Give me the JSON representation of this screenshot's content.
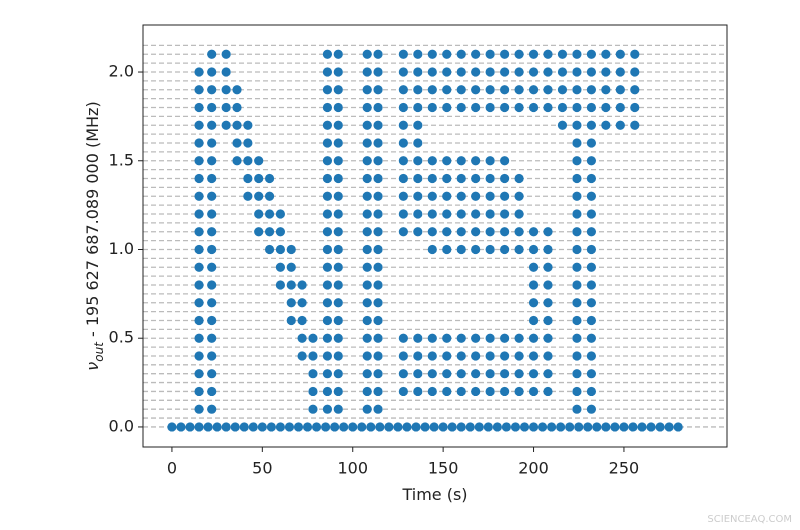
{
  "chart_data": {
    "type": "scatter",
    "xlabel": "Time (s)",
    "ylabel": "ν",
    "ylabel_sub": "out",
    "ylabel_rest": " - 195 627 687.089 000 (MHz)",
    "watermark": "SCIENCEAQ.COM",
    "color": "#1f77b4",
    "xlim": [
      -16,
      307
    ],
    "ylim": [
      -0.113,
      2.265
    ],
    "xticks": [
      0,
      50,
      100,
      150,
      200,
      250
    ],
    "yticks": [
      {
        "value": 0,
        "label": "0.0"
      },
      0.5,
      {
        "value": 1,
        "label": "1.0"
      },
      1.5,
      {
        "value": 2,
        "label": "2.0"
      }
    ],
    "hlines": [
      0,
      0.05,
      0.1,
      0.15,
      0.2,
      0.25,
      0.3,
      0.35,
      0.4,
      0.45,
      0.5,
      0.55,
      0.6,
      0.65,
      0.7,
      0.75,
      0.8,
      0.85,
      0.9,
      0.95,
      1.0,
      1.05,
      1.1,
      1.15,
      1.2,
      1.25,
      1.3,
      1.35,
      1.4,
      1.45,
      1.5,
      1.55,
      1.6,
      1.65,
      1.7,
      1.75,
      1.8,
      1.85,
      1.9,
      1.95,
      2.0,
      2.05,
      2.1,
      2.15
    ],
    "points": [
      [
        15,
        0.1
      ],
      [
        15,
        0.2
      ],
      [
        15,
        0.3
      ],
      [
        15,
        0.4
      ],
      [
        15,
        0.5
      ],
      [
        15,
        0.6
      ],
      [
        15,
        0.7
      ],
      [
        15,
        0.8
      ],
      [
        15,
        0.9
      ],
      [
        15,
        1.0
      ],
      [
        15,
        1.1
      ],
      [
        15,
        1.2
      ],
      [
        15,
        1.3
      ],
      [
        15,
        1.4
      ],
      [
        15,
        1.5
      ],
      [
        15,
        1.6
      ],
      [
        15,
        1.7
      ],
      [
        15,
        1.8
      ],
      [
        15,
        1.9
      ],
      [
        15,
        2.0
      ],
      [
        22,
        0.1
      ],
      [
        22,
        0.2
      ],
      [
        22,
        0.3
      ],
      [
        22,
        0.4
      ],
      [
        22,
        0.5
      ],
      [
        22,
        0.6
      ],
      [
        22,
        0.7
      ],
      [
        22,
        0.8
      ],
      [
        22,
        0.9
      ],
      [
        22,
        1.0
      ],
      [
        22,
        1.1
      ],
      [
        22,
        1.2
      ],
      [
        22,
        1.3
      ],
      [
        22,
        1.4
      ],
      [
        22,
        1.5
      ],
      [
        22,
        1.6
      ],
      [
        22,
        1.7
      ],
      [
        22,
        1.8
      ],
      [
        22,
        1.9
      ],
      [
        22,
        2.0
      ],
      [
        22,
        2.1
      ],
      [
        30,
        1.7
      ],
      [
        30,
        1.8
      ],
      [
        30,
        1.9
      ],
      [
        30,
        2.0
      ],
      [
        30,
        2.1
      ],
      [
        36,
        1.5
      ],
      [
        36,
        1.6
      ],
      [
        36,
        1.7
      ],
      [
        36,
        1.8
      ],
      [
        36,
        1.9
      ],
      [
        42,
        1.3
      ],
      [
        42,
        1.4
      ],
      [
        42,
        1.5
      ],
      [
        42,
        1.6
      ],
      [
        42,
        1.7
      ],
      [
        48,
        1.1
      ],
      [
        48,
        1.2
      ],
      [
        48,
        1.3
      ],
      [
        48,
        1.4
      ],
      [
        48,
        1.5
      ],
      [
        54,
        1.0
      ],
      [
        54,
        1.1
      ],
      [
        54,
        1.2
      ],
      [
        54,
        1.3
      ],
      [
        54,
        1.4
      ],
      [
        60,
        0.8
      ],
      [
        60,
        0.9
      ],
      [
        60,
        1.0
      ],
      [
        60,
        1.1
      ],
      [
        60,
        1.2
      ],
      [
        66,
        0.6
      ],
      [
        66,
        0.7
      ],
      [
        66,
        0.8
      ],
      [
        66,
        0.9
      ],
      [
        66,
        1.0
      ],
      [
        72,
        0.4
      ],
      [
        72,
        0.5
      ],
      [
        72,
        0.6
      ],
      [
        72,
        0.7
      ],
      [
        72,
        0.8
      ],
      [
        78,
        0.1
      ],
      [
        78,
        0.2
      ],
      [
        78,
        0.3
      ],
      [
        78,
        0.4
      ],
      [
        78,
        0.5
      ],
      [
        86,
        0.1
      ],
      [
        86,
        0.2
      ],
      [
        86,
        0.3
      ],
      [
        86,
        0.4
      ],
      [
        86,
        0.5
      ],
      [
        86,
        0.6
      ],
      [
        86,
        0.7
      ],
      [
        86,
        0.8
      ],
      [
        86,
        0.9
      ],
      [
        86,
        1.0
      ],
      [
        86,
        1.1
      ],
      [
        86,
        1.2
      ],
      [
        86,
        1.3
      ],
      [
        86,
        1.4
      ],
      [
        86,
        1.5
      ],
      [
        86,
        1.6
      ],
      [
        86,
        1.7
      ],
      [
        86,
        1.8
      ],
      [
        86,
        1.9
      ],
      [
        86,
        2.0
      ],
      [
        86,
        2.1
      ],
      [
        92,
        0.1
      ],
      [
        92,
        0.2
      ],
      [
        92,
        0.3
      ],
      [
        92,
        0.4
      ],
      [
        92,
        0.5
      ],
      [
        92,
        0.6
      ],
      [
        92,
        0.7
      ],
      [
        92,
        0.8
      ],
      [
        92,
        0.9
      ],
      [
        92,
        1.0
      ],
      [
        92,
        1.1
      ],
      [
        92,
        1.2
      ],
      [
        92,
        1.3
      ],
      [
        92,
        1.4
      ],
      [
        92,
        1.5
      ],
      [
        92,
        1.6
      ],
      [
        92,
        1.7
      ],
      [
        92,
        1.8
      ],
      [
        92,
        1.9
      ],
      [
        92,
        2.0
      ],
      [
        92,
        2.1
      ],
      [
        108,
        0.1
      ],
      [
        108,
        0.2
      ],
      [
        108,
        0.3
      ],
      [
        108,
        0.4
      ],
      [
        108,
        0.5
      ],
      [
        108,
        0.6
      ],
      [
        108,
        0.7
      ],
      [
        108,
        0.8
      ],
      [
        108,
        0.9
      ],
      [
        108,
        1.0
      ],
      [
        108,
        1.1
      ],
      [
        108,
        1.2
      ],
      [
        108,
        1.3
      ],
      [
        108,
        1.4
      ],
      [
        108,
        1.5
      ],
      [
        108,
        1.6
      ],
      [
        108,
        1.7
      ],
      [
        108,
        1.8
      ],
      [
        108,
        1.9
      ],
      [
        108,
        2.0
      ],
      [
        108,
        2.1
      ],
      [
        114,
        0.1
      ],
      [
        114,
        0.2
      ],
      [
        114,
        0.3
      ],
      [
        114,
        0.4
      ],
      [
        114,
        0.5
      ],
      [
        114,
        0.6
      ],
      [
        114,
        0.7
      ],
      [
        114,
        0.8
      ],
      [
        114,
        0.9
      ],
      [
        114,
        1.0
      ],
      [
        114,
        1.1
      ],
      [
        114,
        1.2
      ],
      [
        114,
        1.3
      ],
      [
        114,
        1.4
      ],
      [
        114,
        1.5
      ],
      [
        114,
        1.6
      ],
      [
        114,
        1.7
      ],
      [
        114,
        1.8
      ],
      [
        114,
        1.9
      ],
      [
        114,
        2.0
      ],
      [
        114,
        2.1
      ],
      [
        128,
        1.1
      ],
      [
        128,
        1.2
      ],
      [
        128,
        1.3
      ],
      [
        128,
        1.4
      ],
      [
        128,
        1.5
      ],
      [
        128,
        1.6
      ],
      [
        128,
        1.7
      ],
      [
        128,
        1.8
      ],
      [
        128,
        1.9
      ],
      [
        128,
        2.0
      ],
      [
        128,
        2.1
      ],
      [
        136,
        1.1
      ],
      [
        136,
        1.2
      ],
      [
        136,
        1.3
      ],
      [
        136,
        1.4
      ],
      [
        136,
        1.5
      ],
      [
        136,
        1.6
      ],
      [
        136,
        1.7
      ],
      [
        136,
        1.8
      ],
      [
        136,
        1.9
      ],
      [
        136,
        2.0
      ],
      [
        136,
        2.1
      ],
      [
        144,
        1.8
      ],
      [
        144,
        1.9
      ],
      [
        144,
        2.0
      ],
      [
        144,
        2.1
      ],
      [
        152,
        1.8
      ],
      [
        152,
        1.9
      ],
      [
        152,
        2.0
      ],
      [
        152,
        2.1
      ],
      [
        160,
        1.8
      ],
      [
        160,
        1.9
      ],
      [
        160,
        2.0
      ],
      [
        160,
        2.1
      ],
      [
        168,
        1.8
      ],
      [
        168,
        1.9
      ],
      [
        168,
        2.0
      ],
      [
        168,
        2.1
      ],
      [
        176,
        1.8
      ],
      [
        176,
        1.9
      ],
      [
        176,
        2.0
      ],
      [
        176,
        2.1
      ],
      [
        184,
        1.8
      ],
      [
        184,
        1.9
      ],
      [
        184,
        2.0
      ],
      [
        184,
        2.1
      ],
      [
        192,
        1.8
      ],
      [
        192,
        1.9
      ],
      [
        192,
        2.0
      ],
      [
        192,
        2.1
      ],
      [
        200,
        1.8
      ],
      [
        200,
        1.9
      ],
      [
        200,
        2.0
      ],
      [
        200,
        2.1
      ],
      [
        208,
        1.8
      ],
      [
        208,
        1.9
      ],
      [
        208,
        2.0
      ],
      [
        208,
        2.1
      ],
      [
        144,
        1.0
      ],
      [
        144,
        1.1
      ],
      [
        144,
        1.2
      ],
      [
        144,
        1.3
      ],
      [
        144,
        1.4
      ],
      [
        144,
        1.5
      ],
      [
        152,
        1.0
      ],
      [
        152,
        1.1
      ],
      [
        152,
        1.2
      ],
      [
        152,
        1.3
      ],
      [
        152,
        1.4
      ],
      [
        152,
        1.5
      ],
      [
        160,
        1.0
      ],
      [
        160,
        1.1
      ],
      [
        160,
        1.2
      ],
      [
        160,
        1.3
      ],
      [
        160,
        1.4
      ],
      [
        160,
        1.5
      ],
      [
        168,
        1.0
      ],
      [
        168,
        1.1
      ],
      [
        168,
        1.2
      ],
      [
        168,
        1.3
      ],
      [
        168,
        1.4
      ],
      [
        168,
        1.5
      ],
      [
        176,
        1.0
      ],
      [
        176,
        1.1
      ],
      [
        176,
        1.2
      ],
      [
        176,
        1.3
      ],
      [
        176,
        1.4
      ],
      [
        176,
        1.5
      ],
      [
        184,
        1.0
      ],
      [
        184,
        1.1
      ],
      [
        184,
        1.2
      ],
      [
        184,
        1.3
      ],
      [
        184,
        1.4
      ],
      [
        184,
        1.5
      ],
      [
        192,
        1.0
      ],
      [
        192,
        1.1
      ],
      [
        192,
        1.2
      ],
      [
        192,
        1.3
      ],
      [
        192,
        1.4
      ],
      [
        200,
        0.2
      ],
      [
        200,
        0.3
      ],
      [
        200,
        0.4
      ],
      [
        200,
        0.5
      ],
      [
        200,
        0.6
      ],
      [
        200,
        0.7
      ],
      [
        200,
        0.8
      ],
      [
        200,
        0.9
      ],
      [
        200,
        1.0
      ],
      [
        200,
        1.1
      ],
      [
        208,
        0.2
      ],
      [
        208,
        0.3
      ],
      [
        208,
        0.4
      ],
      [
        208,
        0.5
      ],
      [
        208,
        0.6
      ],
      [
        208,
        0.7
      ],
      [
        208,
        0.8
      ],
      [
        208,
        0.9
      ],
      [
        208,
        1.0
      ],
      [
        208,
        1.1
      ],
      [
        128,
        0.2
      ],
      [
        128,
        0.3
      ],
      [
        128,
        0.4
      ],
      [
        128,
        0.5
      ],
      [
        136,
        0.2
      ],
      [
        136,
        0.3
      ],
      [
        136,
        0.4
      ],
      [
        136,
        0.5
      ],
      [
        144,
        0.2
      ],
      [
        144,
        0.3
      ],
      [
        144,
        0.4
      ],
      [
        144,
        0.5
      ],
      [
        152,
        0.2
      ],
      [
        152,
        0.3
      ],
      [
        152,
        0.4
      ],
      [
        152,
        0.5
      ],
      [
        160,
        0.2
      ],
      [
        160,
        0.3
      ],
      [
        160,
        0.4
      ],
      [
        160,
        0.5
      ],
      [
        168,
        0.2
      ],
      [
        168,
        0.3
      ],
      [
        168,
        0.4
      ],
      [
        168,
        0.5
      ],
      [
        176,
        0.2
      ],
      [
        176,
        0.3
      ],
      [
        176,
        0.4
      ],
      [
        176,
        0.5
      ],
      [
        184,
        0.2
      ],
      [
        184,
        0.3
      ],
      [
        184,
        0.4
      ],
      [
        184,
        0.5
      ],
      [
        192,
        0.2
      ],
      [
        192,
        0.3
      ],
      [
        192,
        0.4
      ],
      [
        192,
        0.5
      ],
      [
        216,
        1.7
      ],
      [
        216,
        1.8
      ],
      [
        216,
        1.9
      ],
      [
        216,
        2.0
      ],
      [
        216,
        2.1
      ],
      [
        224,
        1.7
      ],
      [
        224,
        1.8
      ],
      [
        224,
        1.9
      ],
      [
        224,
        2.0
      ],
      [
        224,
        2.1
      ],
      [
        232,
        1.7
      ],
      [
        232,
        1.8
      ],
      [
        232,
        1.9
      ],
      [
        232,
        2.0
      ],
      [
        232,
        2.1
      ],
      [
        240,
        1.7
      ],
      [
        240,
        1.8
      ],
      [
        240,
        1.9
      ],
      [
        240,
        2.0
      ],
      [
        240,
        2.1
      ],
      [
        248,
        1.7
      ],
      [
        248,
        1.8
      ],
      [
        248,
        1.9
      ],
      [
        248,
        2.0
      ],
      [
        248,
        2.1
      ],
      [
        256,
        1.7
      ],
      [
        256,
        1.8
      ],
      [
        256,
        1.9
      ],
      [
        256,
        2.0
      ],
      [
        256,
        2.1
      ],
      [
        224,
        0.1
      ],
      [
        224,
        0.2
      ],
      [
        224,
        0.3
      ],
      [
        224,
        0.4
      ],
      [
        224,
        0.5
      ],
      [
        224,
        0.6
      ],
      [
        224,
        0.7
      ],
      [
        224,
        0.8
      ],
      [
        224,
        0.9
      ],
      [
        224,
        1.0
      ],
      [
        224,
        1.1
      ],
      [
        224,
        1.2
      ],
      [
        224,
        1.3
      ],
      [
        224,
        1.4
      ],
      [
        224,
        1.5
      ],
      [
        224,
        1.6
      ],
      [
        232,
        0.1
      ],
      [
        232,
        0.2
      ],
      [
        232,
        0.3
      ],
      [
        232,
        0.4
      ],
      [
        232,
        0.5
      ],
      [
        232,
        0.6
      ],
      [
        232,
        0.7
      ],
      [
        232,
        0.8
      ],
      [
        232,
        0.9
      ],
      [
        232,
        1.0
      ],
      [
        232,
        1.1
      ],
      [
        232,
        1.2
      ],
      [
        232,
        1.3
      ],
      [
        232,
        1.4
      ],
      [
        232,
        1.5
      ],
      [
        232,
        1.6
      ],
      [
        0,
        0
      ],
      [
        5,
        0
      ],
      [
        10,
        0
      ],
      [
        15,
        0
      ],
      [
        20,
        0
      ],
      [
        25,
        0
      ],
      [
        30,
        0
      ],
      [
        35,
        0
      ],
      [
        40,
        0
      ],
      [
        45,
        0
      ],
      [
        50,
        0
      ],
      [
        55,
        0
      ],
      [
        60,
        0
      ],
      [
        65,
        0
      ],
      [
        70,
        0
      ],
      [
        75,
        0
      ],
      [
        80,
        0
      ],
      [
        85,
        0
      ],
      [
        90,
        0
      ],
      [
        95,
        0
      ],
      [
        100,
        0
      ],
      [
        105,
        0
      ],
      [
        110,
        0
      ],
      [
        115,
        0
      ],
      [
        120,
        0
      ],
      [
        125,
        0
      ],
      [
        130,
        0
      ],
      [
        135,
        0
      ],
      [
        140,
        0
      ],
      [
        145,
        0
      ],
      [
        150,
        0
      ],
      [
        155,
        0
      ],
      [
        160,
        0
      ],
      [
        165,
        0
      ],
      [
        170,
        0
      ],
      [
        175,
        0
      ],
      [
        180,
        0
      ],
      [
        185,
        0
      ],
      [
        190,
        0
      ],
      [
        195,
        0
      ],
      [
        200,
        0
      ],
      [
        205,
        0
      ],
      [
        210,
        0
      ],
      [
        215,
        0
      ],
      [
        220,
        0
      ],
      [
        225,
        0
      ],
      [
        230,
        0
      ],
      [
        235,
        0
      ],
      [
        240,
        0
      ],
      [
        245,
        0
      ],
      [
        250,
        0
      ],
      [
        255,
        0
      ],
      [
        260,
        0
      ],
      [
        265,
        0
      ],
      [
        270,
        0
      ],
      [
        275,
        0
      ],
      [
        280,
        0
      ]
    ]
  }
}
